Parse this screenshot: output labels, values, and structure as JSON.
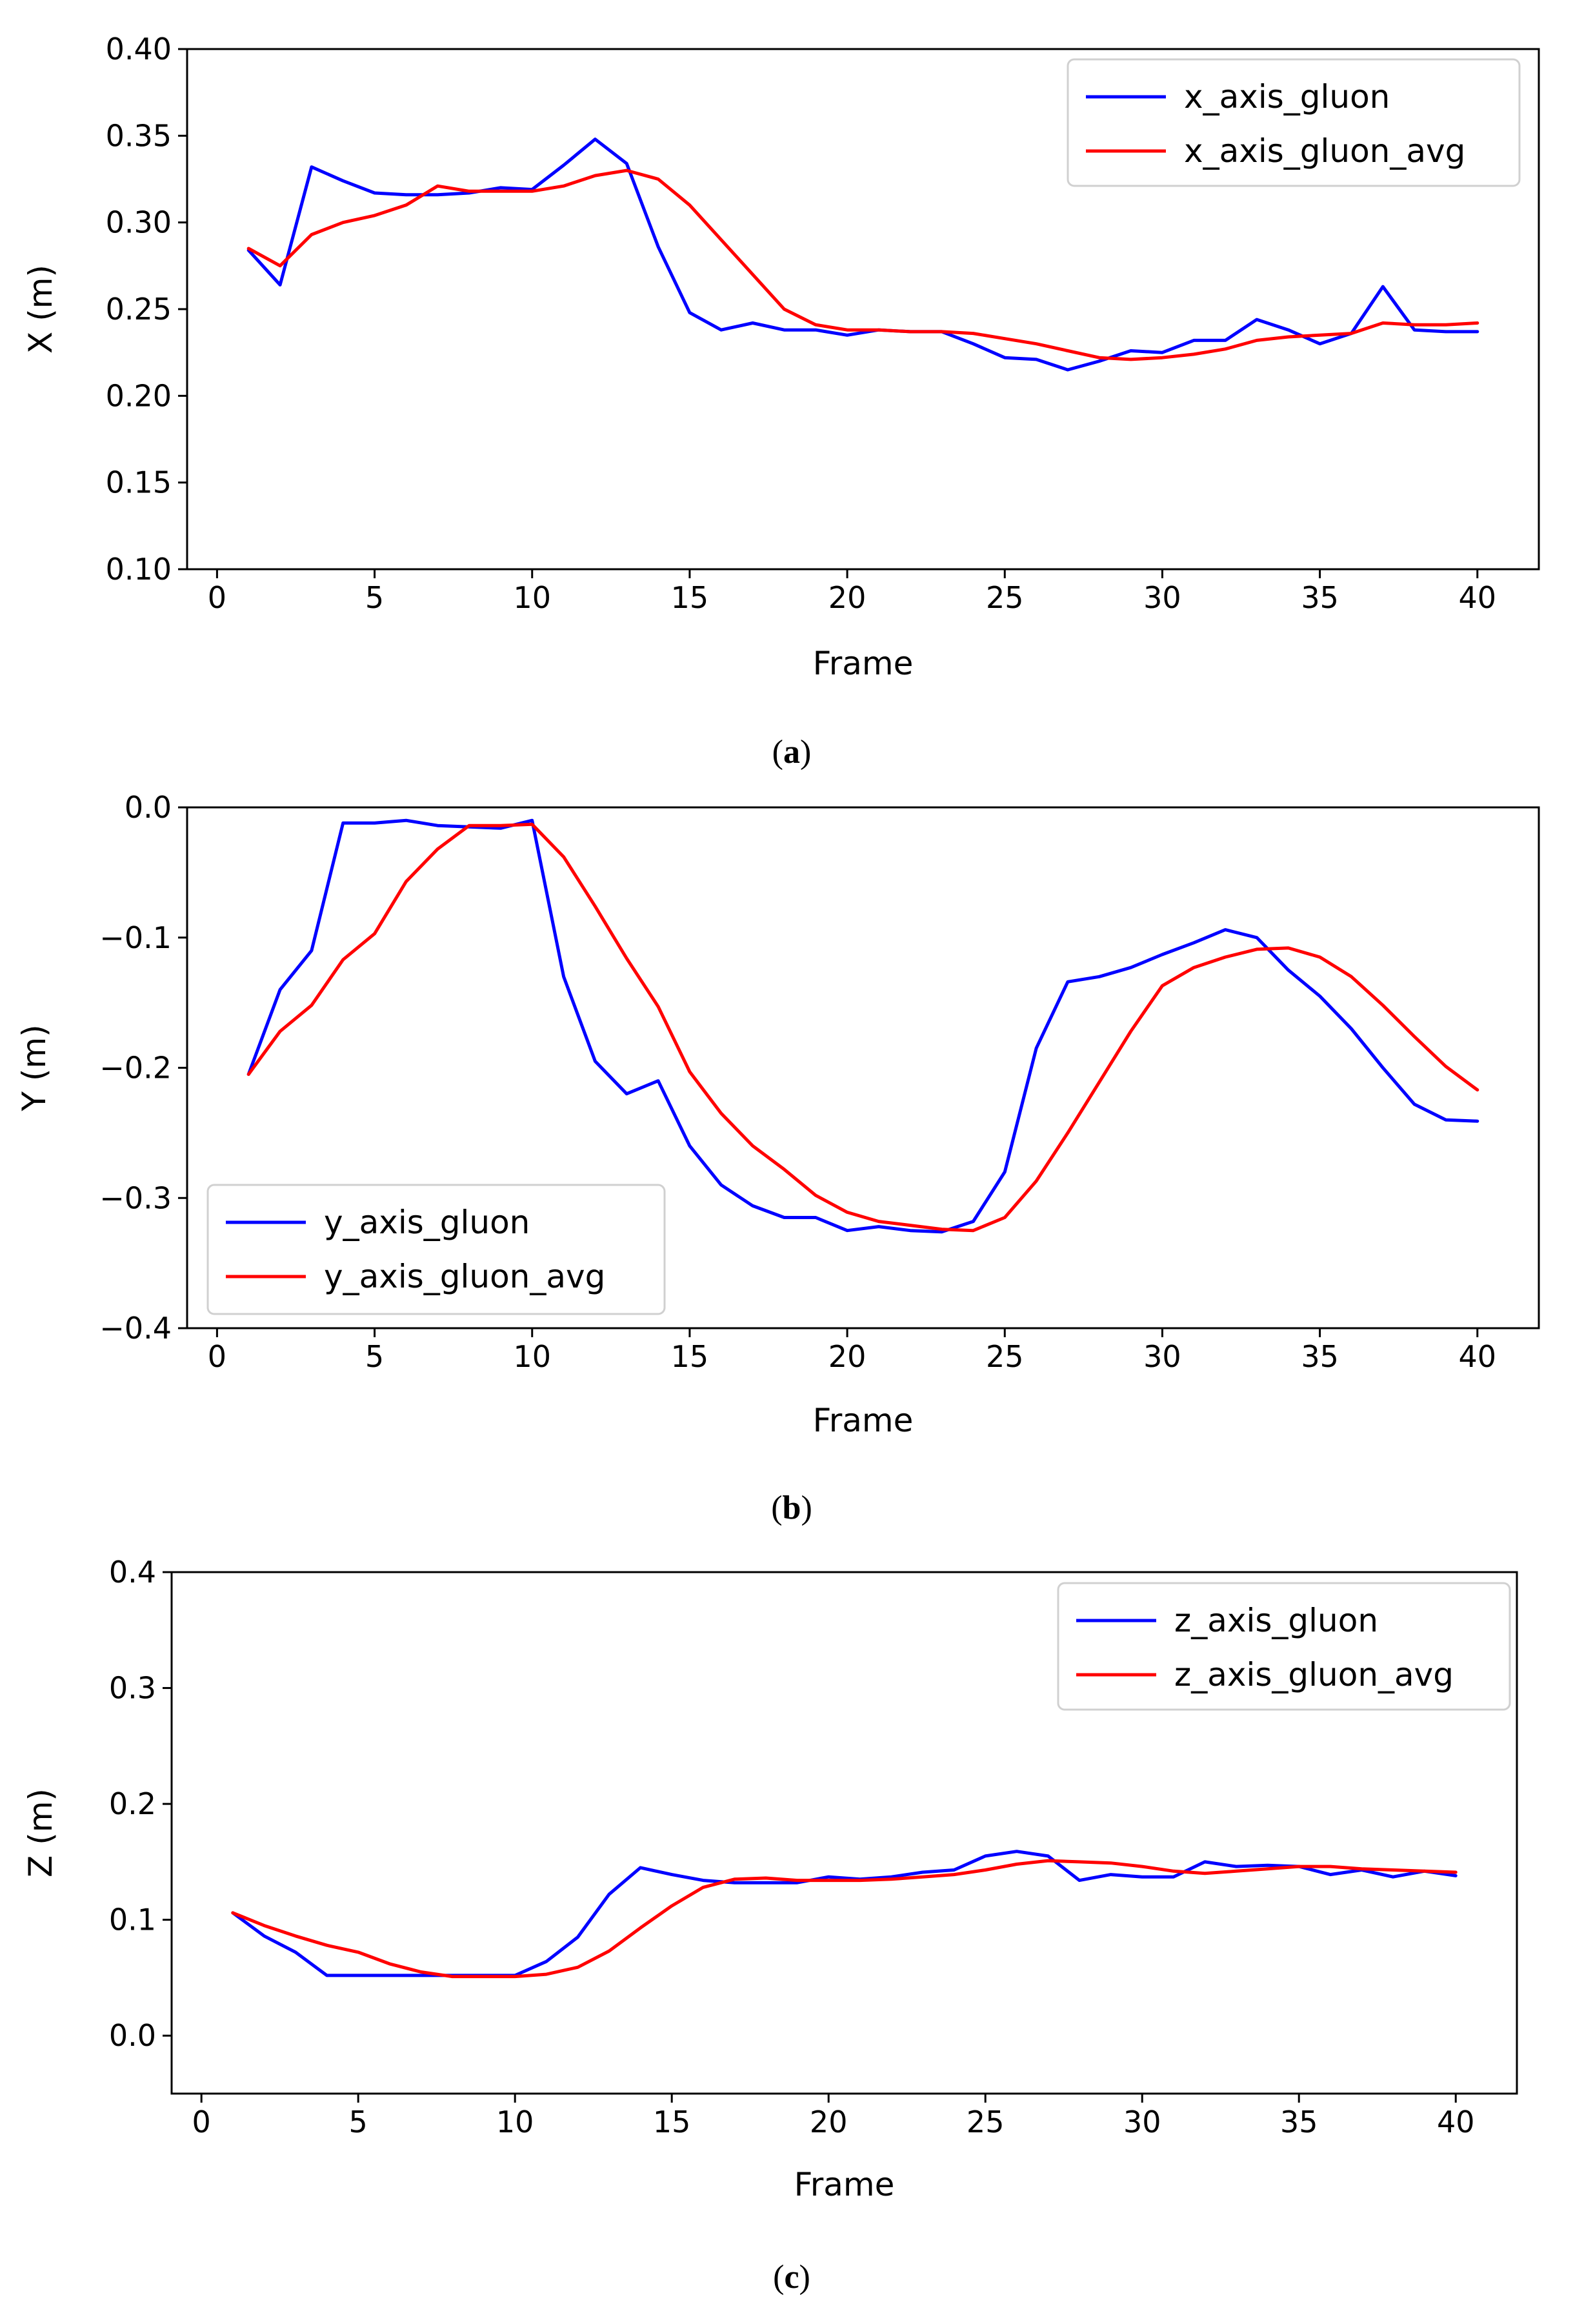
{
  "chart_data": [
    {
      "type": "line",
      "panel_label": "a",
      "xlabel": "Frame",
      "ylabel": "X (m)",
      "xlim": [
        -0.95,
        41.95
      ],
      "ylim": [
        0.1,
        0.4
      ],
      "xticks": [
        0,
        5,
        10,
        15,
        20,
        25,
        30,
        35,
        40
      ],
      "yticks": [
        0.1,
        0.15,
        0.2,
        0.25,
        0.3,
        0.35,
        0.4
      ],
      "ytick_labels": [
        "0.10",
        "0.15",
        "0.20",
        "0.25",
        "0.30",
        "0.35",
        "0.40"
      ],
      "grid": false,
      "legend_position": "top-right",
      "x": [
        1,
        2,
        3,
        4,
        5,
        6,
        7,
        8,
        9,
        10,
        11,
        12,
        13,
        14,
        15,
        16,
        17,
        18,
        19,
        20,
        21,
        22,
        23,
        24,
        25,
        26,
        27,
        28,
        29,
        30,
        31,
        32,
        33,
        34,
        35,
        36,
        37,
        38,
        39,
        40
      ],
      "series": [
        {
          "name": "x_axis_gluon",
          "color": "#0000ff",
          "values": [
            0.284,
            0.264,
            0.332,
            0.324,
            0.317,
            0.316,
            0.316,
            0.317,
            0.32,
            0.319,
            0.333,
            0.348,
            0.334,
            0.286,
            0.248,
            0.238,
            0.242,
            0.238,
            0.238,
            0.235,
            0.238,
            0.237,
            0.237,
            0.23,
            0.222,
            0.221,
            0.215,
            0.22,
            0.226,
            0.225,
            0.232,
            0.232,
            0.244,
            0.238,
            0.23,
            0.236,
            0.263,
            0.238,
            0.237,
            0.237
          ]
        },
        {
          "name": "x_axis_gluon_avg",
          "color": "#ff0000",
          "values": [
            0.285,
            0.275,
            0.293,
            0.3,
            0.304,
            0.31,
            0.321,
            0.318,
            0.318,
            0.318,
            0.321,
            0.327,
            0.33,
            0.325,
            0.31,
            0.29,
            0.27,
            0.25,
            0.241,
            0.238,
            0.238,
            0.237,
            0.237,
            0.236,
            0.233,
            0.23,
            0.226,
            0.222,
            0.221,
            0.222,
            0.224,
            0.227,
            0.232,
            0.234,
            0.235,
            0.236,
            0.242,
            0.241,
            0.241,
            0.242
          ]
        }
      ]
    },
    {
      "type": "line",
      "panel_label": "b",
      "xlabel": "Frame",
      "ylabel": "Y (m)",
      "xlim": [
        -0.95,
        41.95
      ],
      "ylim": [
        -0.4,
        0.0
      ],
      "xticks": [
        0,
        5,
        10,
        15,
        20,
        25,
        30,
        35,
        40
      ],
      "yticks": [
        -0.4,
        -0.3,
        -0.2,
        -0.1,
        0.0
      ],
      "ytick_labels": [
        "−0.4",
        "−0.3",
        "−0.2",
        "−0.1",
        "0.0"
      ],
      "grid": false,
      "legend_position": "bottom-left",
      "x": [
        1,
        2,
        3,
        4,
        5,
        6,
        7,
        8,
        9,
        10,
        11,
        12,
        13,
        14,
        15,
        16,
        17,
        18,
        19,
        20,
        21,
        22,
        23,
        24,
        25,
        26,
        27,
        28,
        29,
        30,
        31,
        32,
        33,
        34,
        35,
        36,
        37,
        38,
        39,
        40
      ],
      "series": [
        {
          "name": "y_axis_gluon",
          "color": "#0000ff",
          "values": [
            -0.205,
            -0.14,
            -0.11,
            -0.012,
            -0.012,
            -0.01,
            -0.014,
            -0.015,
            -0.016,
            -0.01,
            -0.13,
            -0.195,
            -0.22,
            -0.21,
            -0.26,
            -0.29,
            -0.306,
            -0.315,
            -0.315,
            -0.325,
            -0.322,
            -0.325,
            -0.326,
            -0.318,
            -0.28,
            -0.185,
            -0.134,
            -0.13,
            -0.123,
            -0.113,
            -0.104,
            -0.094,
            -0.1,
            -0.125,
            -0.145,
            -0.17,
            -0.2,
            -0.228,
            -0.24,
            -0.241
          ]
        },
        {
          "name": "y_axis_gluon_avg",
          "color": "#ff0000",
          "values": [
            -0.205,
            -0.172,
            -0.152,
            -0.117,
            -0.097,
            -0.057,
            -0.032,
            -0.014,
            -0.014,
            -0.013,
            -0.038,
            -0.076,
            -0.116,
            -0.153,
            -0.203,
            -0.235,
            -0.26,
            -0.278,
            -0.298,
            -0.311,
            -0.318,
            -0.321,
            -0.324,
            -0.325,
            -0.315,
            -0.287,
            -0.25,
            -0.211,
            -0.172,
            -0.137,
            -0.123,
            -0.115,
            -0.109,
            -0.108,
            -0.115,
            -0.13,
            -0.152,
            -0.176,
            -0.199,
            -0.217
          ]
        }
      ]
    },
    {
      "type": "line",
      "panel_label": "c",
      "xlabel": "Frame",
      "ylabel": "Z (m)",
      "xlim": [
        -0.95,
        41.95
      ],
      "ylim": [
        -0.05,
        0.4
      ],
      "xticks": [
        0,
        5,
        10,
        15,
        20,
        25,
        30,
        35,
        40
      ],
      "yticks": [
        0.0,
        0.1,
        0.2,
        0.3,
        0.4
      ],
      "ytick_labels": [
        "0.0",
        "0.1",
        "0.2",
        "0.3",
        "0.4"
      ],
      "grid": false,
      "legend_position": "top-right",
      "x": [
        1,
        2,
        3,
        4,
        5,
        6,
        7,
        8,
        9,
        10,
        11,
        12,
        13,
        14,
        15,
        16,
        17,
        18,
        19,
        20,
        21,
        22,
        23,
        24,
        25,
        26,
        27,
        28,
        29,
        30,
        31,
        32,
        33,
        34,
        35,
        36,
        37,
        38,
        39,
        40
      ],
      "series": [
        {
          "name": "z_axis_gluon",
          "color": "#0000ff",
          "values": [
            0.106,
            0.086,
            0.072,
            0.052,
            0.052,
            0.052,
            0.052,
            0.052,
            0.052,
            0.052,
            0.064,
            0.085,
            0.122,
            0.145,
            0.139,
            0.134,
            0.132,
            0.132,
            0.132,
            0.137,
            0.135,
            0.137,
            0.141,
            0.143,
            0.155,
            0.159,
            0.155,
            0.134,
            0.139,
            0.137,
            0.137,
            0.15,
            0.146,
            0.147,
            0.146,
            0.139,
            0.143,
            0.137,
            0.142,
            0.138
          ]
        },
        {
          "name": "z_axis_gluon_avg",
          "color": "#ff0000",
          "values": [
            0.106,
            0.095,
            0.086,
            0.078,
            0.072,
            0.062,
            0.055,
            0.051,
            0.051,
            0.051,
            0.053,
            0.059,
            0.073,
            0.093,
            0.112,
            0.128,
            0.135,
            0.136,
            0.134,
            0.134,
            0.134,
            0.135,
            0.137,
            0.139,
            0.143,
            0.148,
            0.151,
            0.15,
            0.149,
            0.146,
            0.142,
            0.14,
            0.142,
            0.144,
            0.146,
            0.146,
            0.144,
            0.143,
            0.142,
            0.141
          ]
        }
      ]
    }
  ]
}
